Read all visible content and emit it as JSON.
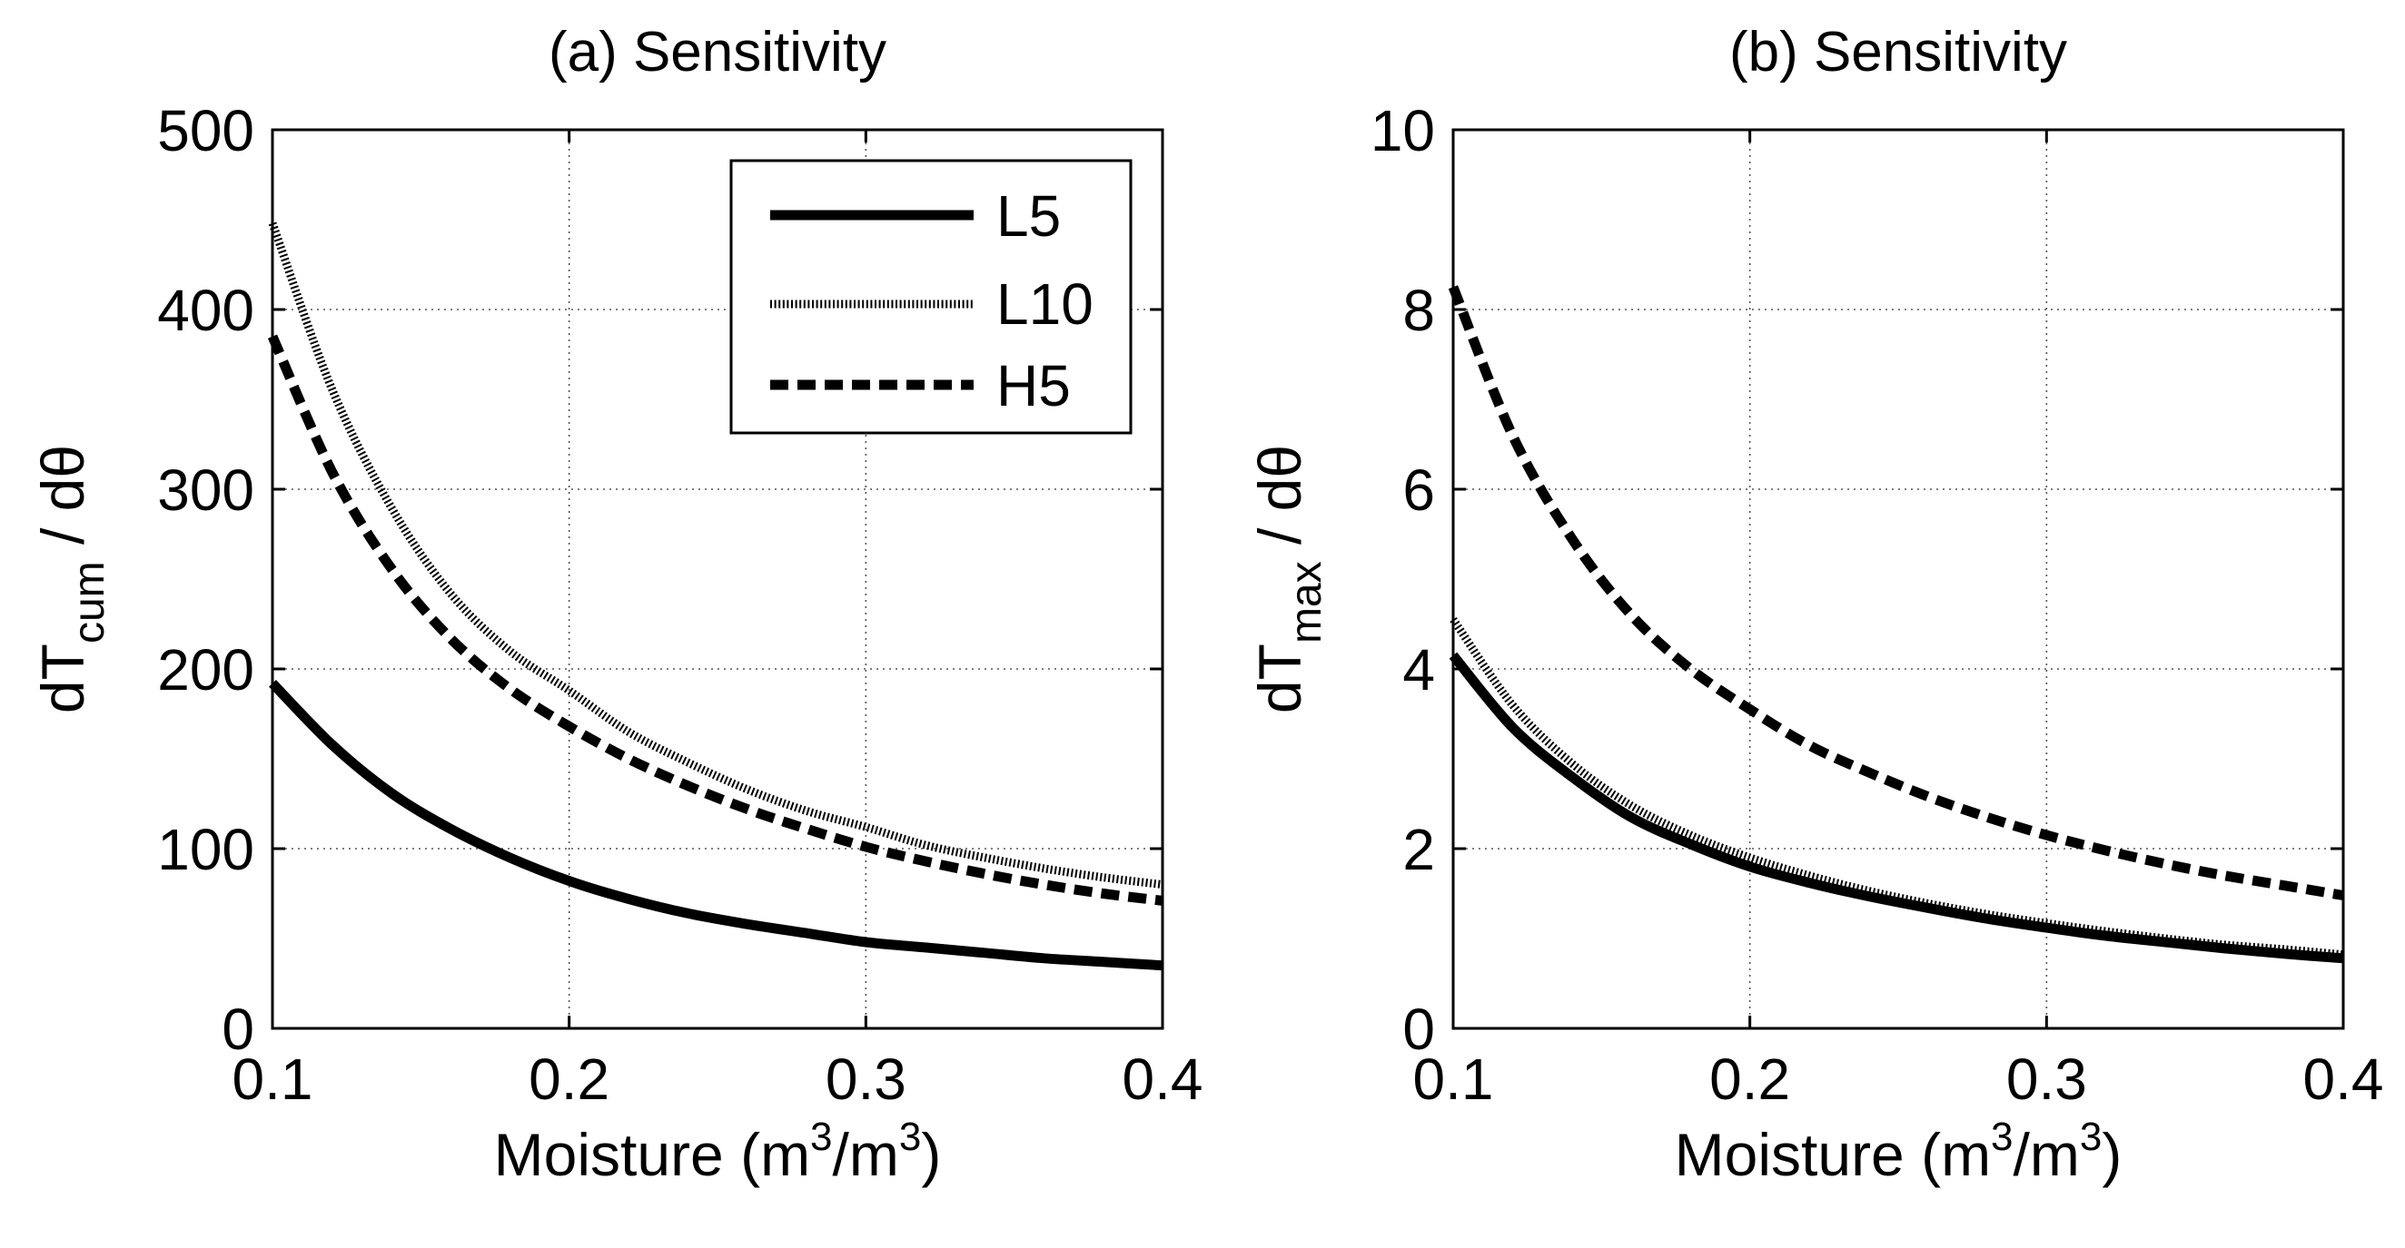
{
  "figure": {
    "background": "#ffffff",
    "ink": "#000000",
    "grid": true
  },
  "chart_data": [
    {
      "type": "line",
      "title": "(a) Sensitivity",
      "xlabel": {
        "main": "Moisture (m",
        "sup1": "3",
        "mid": "/m",
        "sup2": "3",
        "end": ")"
      },
      "ylabel": {
        "pre": "dT",
        "sub": "cum",
        "post": " / dθ"
      },
      "xlim": [
        0.1,
        0.4
      ],
      "ylim": [
        0,
        500
      ],
      "xticks": [
        0.1,
        0.2,
        0.3,
        0.4
      ],
      "yticks": [
        0,
        100,
        200,
        300,
        400,
        500
      ],
      "xtick_labels": [
        "0.1",
        "0.2",
        "0.3",
        "0.4"
      ],
      "ytick_labels": [
        "0",
        "100",
        "200",
        "300",
        "400",
        "500"
      ],
      "grid": true,
      "legend": {
        "position": "top-right",
        "entries": [
          "L5",
          "L10",
          "H5"
        ]
      },
      "x": [
        0.1,
        0.12,
        0.14,
        0.16,
        0.18,
        0.2,
        0.22,
        0.24,
        0.26,
        0.28,
        0.3,
        0.32,
        0.34,
        0.36,
        0.38,
        0.4
      ],
      "series": [
        {
          "name": "L5",
          "style": "solid",
          "values": [
            192,
            158,
            131,
            111,
            95,
            82,
            72,
            64,
            58,
            53,
            48,
            45,
            42,
            39,
            37,
            35
          ]
        },
        {
          "name": "L10",
          "style": "dotted",
          "values": [
            448,
            356,
            290,
            242,
            210,
            188,
            165,
            148,
            133,
            121,
            112,
            102,
            95,
            89,
            84,
            80
          ]
        },
        {
          "name": "H5",
          "style": "dashed",
          "values": [
            385,
            310,
            256,
            217,
            189,
            168,
            150,
            135,
            122,
            111,
            101,
            93,
            86,
            80,
            75,
            71
          ]
        }
      ]
    },
    {
      "type": "line",
      "title": "(b) Sensitivity",
      "xlabel": {
        "main": "Moisture (m",
        "sup1": "3",
        "mid": "/m",
        "sup2": "3",
        "end": ")"
      },
      "ylabel": {
        "pre": "dT",
        "sub": "max",
        "post": " / dθ"
      },
      "xlim": [
        0.1,
        0.4
      ],
      "ylim": [
        0,
        10
      ],
      "xticks": [
        0.1,
        0.2,
        0.3,
        0.4
      ],
      "yticks": [
        0,
        2,
        4,
        6,
        8,
        10
      ],
      "xtick_labels": [
        "0.1",
        "0.2",
        "0.3",
        "0.4"
      ],
      "ytick_labels": [
        "0",
        "2",
        "4",
        "6",
        "8",
        "10"
      ],
      "grid": true,
      "x": [
        0.1,
        0.12,
        0.14,
        0.16,
        0.18,
        0.2,
        0.22,
        0.24,
        0.26,
        0.28,
        0.3,
        0.32,
        0.34,
        0.36,
        0.38,
        0.4
      ],
      "series": [
        {
          "name": "L5",
          "style": "solid",
          "values": [
            4.15,
            3.35,
            2.8,
            2.35,
            2.05,
            1.8,
            1.62,
            1.47,
            1.34,
            1.22,
            1.12,
            1.03,
            0.96,
            0.89,
            0.83,
            0.78
          ]
        },
        {
          "name": "L10",
          "style": "dotted",
          "values": [
            4.55,
            3.6,
            2.95,
            2.48,
            2.15,
            1.9,
            1.7,
            1.53,
            1.39,
            1.27,
            1.17,
            1.08,
            1.0,
            0.93,
            0.88,
            0.82
          ]
        },
        {
          "name": "H5",
          "style": "dashed",
          "values": [
            8.25,
            6.6,
            5.45,
            4.6,
            4.0,
            3.55,
            3.15,
            2.85,
            2.58,
            2.35,
            2.15,
            1.98,
            1.83,
            1.7,
            1.59,
            1.48
          ]
        }
      ]
    }
  ]
}
